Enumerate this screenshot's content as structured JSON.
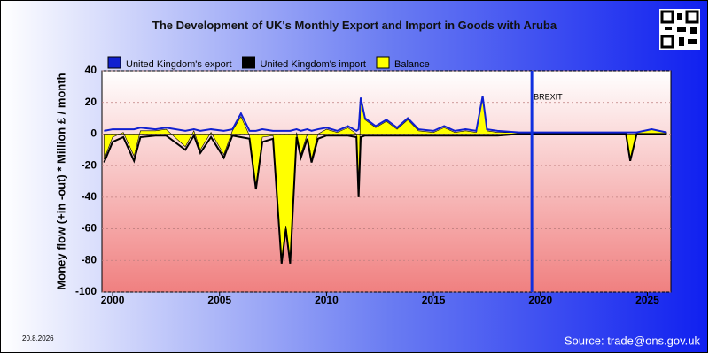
{
  "chart_data": {
    "type": "line",
    "title": "The Development of UK's Monthly Export and Import in Goods with Aruba",
    "y_label": "Money flow (+in -out) * Million £ / month",
    "date": "20.8.2026",
    "source": "Source: trade@ons.gov.uk",
    "annotation": {
      "label": "BREXIT",
      "x": 2019.6,
      "color": "#1030e0"
    },
    "x": [
      1999.6,
      2000.0,
      2000.5,
      2001.0,
      2001.3,
      2002.0,
      2002.5,
      2003.4,
      2003.8,
      2004.1,
      2004.6,
      2005.2,
      2005.6,
      2006.0,
      2006.4,
      2006.7,
      2007.0,
      2007.5,
      2007.9,
      2008.1,
      2008.3,
      2008.6,
      2008.8,
      2009.1,
      2009.3,
      2009.6,
      2010.0,
      2010.5,
      2011.0,
      2011.4,
      2011.5,
      2011.6,
      2011.8,
      2012.3,
      2012.8,
      2013.3,
      2013.8,
      2014.3,
      2015.0,
      2015.5,
      2016.0,
      2016.5,
      2017.0,
      2017.3,
      2017.5,
      2018.0,
      2019.0,
      2020.0,
      2022.0,
      2024.0,
      2024.2,
      2024.5,
      2025.2,
      2025.9
    ],
    "series": [
      {
        "name": "United Kingdom's export",
        "color": "#1020d0",
        "values": [
          2,
          3,
          3,
          3,
          4,
          3,
          4,
          2,
          3,
          2,
          3,
          2,
          3,
          13,
          2,
          2,
          3,
          2,
          2,
          2,
          2,
          3,
          2,
          3,
          2,
          3,
          4,
          2,
          5,
          2,
          3,
          23,
          10,
          5,
          9,
          4,
          10,
          3,
          2,
          5,
          2,
          3,
          2,
          24,
          3,
          2,
          1,
          1,
          1,
          1,
          1,
          1,
          3,
          1
        ]
      },
      {
        "name": "United Kingdom's import",
        "color": "#000000",
        "values": [
          -18,
          -5,
          -2,
          -17,
          -2,
          -1,
          -1,
          -10,
          -1,
          -12,
          -2,
          -15,
          -1,
          -2,
          -3,
          -35,
          -5,
          -3,
          -82,
          -60,
          -82,
          -2,
          -15,
          -3,
          -18,
          -3,
          -1,
          -1,
          -1,
          -2,
          -40,
          -2,
          -1,
          -1,
          -1,
          -1,
          -1,
          -1,
          -1,
          -1,
          -1,
          -1,
          -1,
          -1,
          -1,
          -1,
          0,
          0,
          0,
          0,
          -17,
          0,
          0,
          0
        ]
      },
      {
        "name": "Balance",
        "color": "#ffff00",
        "values": [
          -16,
          -2,
          1,
          -14,
          2,
          2,
          3,
          -8,
          2,
          -10,
          1,
          -13,
          2,
          11,
          -1,
          -33,
          -2,
          -1,
          -80,
          -58,
          -80,
          1,
          -13,
          0,
          -16,
          0,
          3,
          1,
          4,
          0,
          -37,
          21,
          9,
          4,
          8,
          3,
          9,
          2,
          1,
          4,
          1,
          2,
          1,
          23,
          2,
          1,
          1,
          1,
          1,
          1,
          -16,
          1,
          3,
          1
        ]
      }
    ],
    "xlim": [
      1999.5,
      2026.1
    ],
    "xticks": [
      2000,
      2005,
      2010,
      2015,
      2020,
      2025
    ],
    "ylim": [
      -100,
      40
    ],
    "yticks": [
      -100,
      -80,
      -60,
      -40,
      -20,
      0,
      20,
      40
    ],
    "grid": true
  }
}
